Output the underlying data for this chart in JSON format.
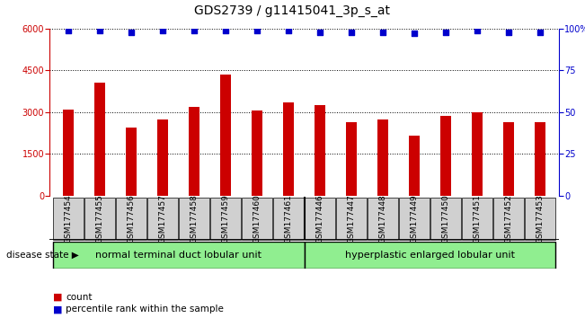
{
  "title": "GDS2739 / g11415041_3p_s_at",
  "samples": [
    "GSM177454",
    "GSM177455",
    "GSM177456",
    "GSM177457",
    "GSM177458",
    "GSM177459",
    "GSM177460",
    "GSM177461",
    "GSM177446",
    "GSM177447",
    "GSM177448",
    "GSM177449",
    "GSM177450",
    "GSM177451",
    "GSM177452",
    "GSM177453"
  ],
  "counts": [
    3100,
    4050,
    2450,
    2750,
    3200,
    4350,
    3050,
    3350,
    3250,
    2650,
    2750,
    2150,
    2850,
    3000,
    2650,
    2650
  ],
  "percentiles": [
    99,
    99,
    98,
    99,
    99,
    99,
    99,
    99,
    98,
    98,
    98,
    97,
    98,
    99,
    98,
    98
  ],
  "bar_color": "#cc0000",
  "dot_color": "#0000cc",
  "ylim_left": [
    0,
    6000
  ],
  "ylim_right": [
    0,
    100
  ],
  "yticks_left": [
    0,
    1500,
    3000,
    4500,
    6000
  ],
  "yticks_right": [
    0,
    25,
    50,
    75,
    100
  ],
  "group1_label": "normal terminal duct lobular unit",
  "group2_label": "hyperplastic enlarged lobular unit",
  "group1_count": 8,
  "group2_count": 8,
  "legend_count_label": "count",
  "legend_pct_label": "percentile rank within the sample",
  "disease_state_label": "disease state",
  "group1_color": "#90ee90",
  "group2_color": "#90ee90",
  "sample_bg_color": "#d0d0d0",
  "background_color": "#ffffff",
  "title_fontsize": 10,
  "tick_fontsize": 7,
  "group_fontsize": 8,
  "legend_fontsize": 7.5
}
